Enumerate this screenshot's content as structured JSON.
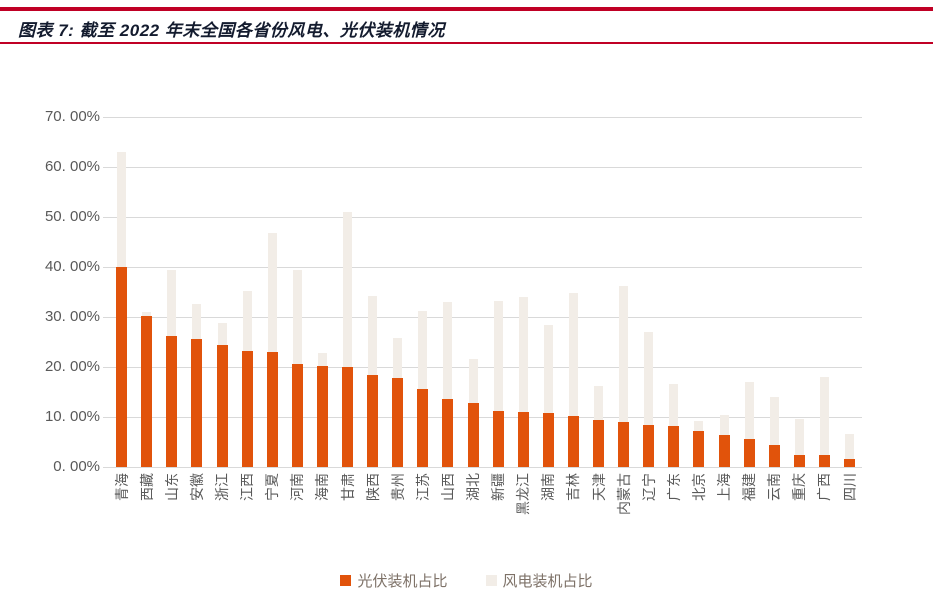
{
  "header": {
    "title": "图表 7: 截至 2022 年末全国各省份风电、光伏装机情况",
    "title_color": "#131B2E",
    "rule_color": "#C00025"
  },
  "chart_data": {
    "type": "bar",
    "stacked": true,
    "title": "截至 2022 年末全国各省份风电、光伏装机情况",
    "categories": [
      "青海",
      "西藏",
      "山东",
      "安徽",
      "浙江",
      "江西",
      "宁夏",
      "河南",
      "海南",
      "甘肃",
      "陕西",
      "贵州",
      "江苏",
      "山西",
      "湖北",
      "新疆",
      "黑龙江",
      "湖南",
      "吉林",
      "天津",
      "内蒙古",
      "辽宁",
      "广东",
      "北京",
      "上海",
      "福建",
      "云南",
      "重庆",
      "广西",
      "四川"
    ],
    "series": [
      {
        "name": "光伏装机占比",
        "color": "#E1530B",
        "values": [
          40.0,
          30.2,
          26.2,
          25.6,
          24.4,
          23.3,
          23.1,
          20.6,
          20.2,
          20.0,
          18.5,
          17.8,
          15.6,
          13.6,
          12.8,
          11.3,
          11.0,
          10.9,
          10.3,
          9.4,
          9.0,
          8.4,
          8.3,
          7.2,
          6.5,
          5.6,
          4.4,
          2.5,
          2.5,
          1.6
        ]
      },
      {
        "name": "风电装机占比",
        "color": "#F2EDE7",
        "values": [
          23.0,
          0.8,
          13.2,
          7.0,
          4.4,
          11.9,
          23.7,
          18.8,
          2.6,
          31.1,
          15.8,
          8.0,
          15.7,
          19.5,
          8.8,
          22.0,
          23.1,
          17.6,
          24.5,
          6.8,
          27.3,
          18.6,
          8.3,
          2.1,
          4.0,
          11.4,
          9.7,
          7.1,
          15.5,
          5.0
        ]
      }
    ],
    "y_axis": {
      "ticks": [
        "70. 00%",
        "60. 00%",
        "50. 00%",
        "40. 00%",
        "30. 00%",
        "20. 00%",
        "10. 00%",
        "0. 00%"
      ],
      "min": 0,
      "max": 70,
      "grid": true,
      "grid_color": "#D9D9D9",
      "label_color": "#595959"
    },
    "x_axis": {
      "label_color": "#595959"
    },
    "legend": {
      "position": "bottom",
      "text_color": "#7E7268"
    }
  }
}
